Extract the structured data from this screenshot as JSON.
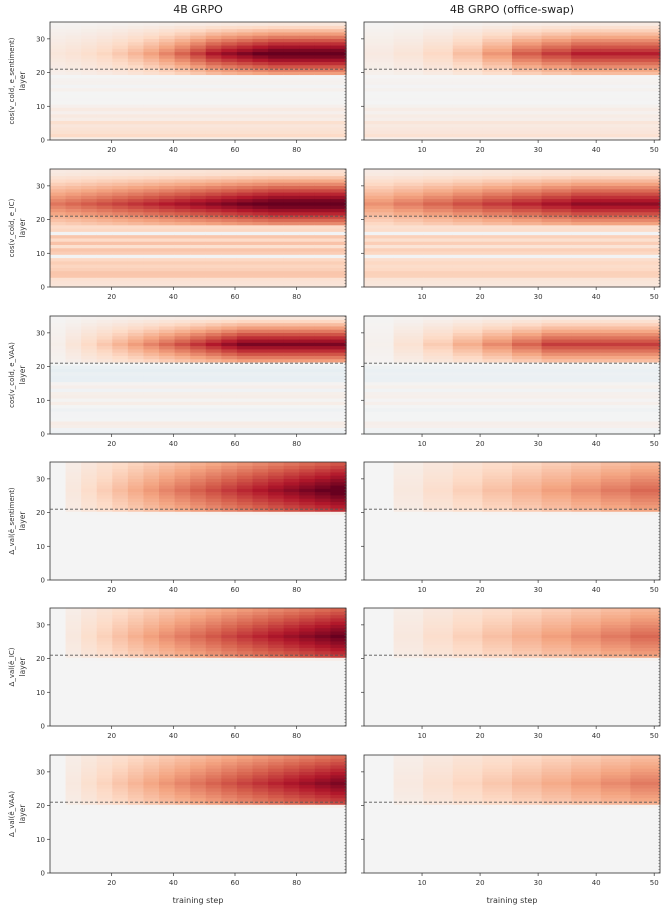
{
  "figure": {
    "columns": [
      {
        "title": "4B GRPO"
      },
      {
        "title": "4B GRPO (office-swap)"
      }
    ],
    "xlabel": "training step",
    "row_ylabels": [
      {
        "metric": "cos(v_cold, e_sentiment)",
        "axis": "layer"
      },
      {
        "metric": "cos(v_cold, e_IC)",
        "axis": "layer"
      },
      {
        "metric": "cos(v_cold, e_VAA)",
        "axis": "layer"
      },
      {
        "metric": "Δ_val(ê_sentiment)",
        "axis": "layer"
      },
      {
        "metric": "Δ_val(ê_IC)",
        "axis": "layer"
      },
      {
        "metric": "Δ_val(ê_VAA)",
        "axis": "layer"
      }
    ]
  },
  "colors": {
    "cmap": "RdBu_r",
    "neutral": "#f4f4f4",
    "max_red": "#67001f",
    "max_blue": "#2166ac",
    "dashed_line": "#555555"
  },
  "chart_data": [
    {
      "type": "heatmap",
      "row": 1,
      "column": "4B GRPO",
      "x_range": [
        5,
        95
      ],
      "x_ticks": [
        20,
        40,
        60,
        80
      ],
      "y_ticks": [
        0,
        10,
        20,
        30
      ],
      "y_range": [
        0,
        35
      ],
      "dashed_layer": 21,
      "intensity": 1.0,
      "profile": "cos-sentiment"
    },
    {
      "type": "heatmap",
      "row": 1,
      "column": "4B GRPO (office-swap)",
      "x_range": [
        5,
        50
      ],
      "x_ticks": [
        10,
        20,
        30,
        40,
        50
      ],
      "y_ticks": [
        0,
        10,
        20,
        30
      ],
      "y_range": [
        0,
        35
      ],
      "dashed_layer": 21,
      "intensity": 0.75,
      "profile": "cos-sentiment"
    },
    {
      "type": "heatmap",
      "row": 2,
      "column": "4B GRPO",
      "x_range": [
        5,
        95
      ],
      "x_ticks": [
        20,
        40,
        60,
        80
      ],
      "y_ticks": [
        0,
        10,
        20,
        30
      ],
      "y_range": [
        0,
        35
      ],
      "dashed_layer": 21,
      "intensity": 1.0,
      "profile": "cos-ic"
    },
    {
      "type": "heatmap",
      "row": 2,
      "column": "4B GRPO (office-swap)",
      "x_range": [
        5,
        50
      ],
      "x_ticks": [
        10,
        20,
        30,
        40,
        50
      ],
      "y_ticks": [
        0,
        10,
        20,
        30
      ],
      "y_range": [
        0,
        35
      ],
      "dashed_layer": 21,
      "intensity": 0.85,
      "profile": "cos-ic"
    },
    {
      "type": "heatmap",
      "row": 3,
      "column": "4B GRPO",
      "x_range": [
        5,
        95
      ],
      "x_ticks": [
        20,
        40,
        60,
        80
      ],
      "y_ticks": [
        0,
        10,
        20,
        30
      ],
      "y_range": [
        0,
        35
      ],
      "dashed_layer": 21,
      "intensity": 0.95,
      "profile": "cos-vaa"
    },
    {
      "type": "heatmap",
      "row": 3,
      "column": "4B GRPO (office-swap)",
      "x_range": [
        5,
        50
      ],
      "x_ticks": [
        10,
        20,
        30,
        40,
        50
      ],
      "y_ticks": [
        0,
        10,
        20,
        30
      ],
      "y_range": [
        0,
        35
      ],
      "dashed_layer": 21,
      "intensity": 0.7,
      "profile": "cos-vaa"
    },
    {
      "type": "heatmap",
      "row": 4,
      "column": "4B GRPO",
      "x_range": [
        5,
        95
      ],
      "x_ticks": [
        20,
        40,
        60,
        80
      ],
      "y_ticks": [
        0,
        10,
        20,
        30
      ],
      "y_range": [
        0,
        35
      ],
      "dashed_layer": 21,
      "intensity": 1.0,
      "profile": "delta"
    },
    {
      "type": "heatmap",
      "row": 4,
      "column": "4B GRPO (office-swap)",
      "x_range": [
        5,
        50
      ],
      "x_ticks": [
        10,
        20,
        30,
        40,
        50
      ],
      "y_ticks": [
        0,
        10,
        20,
        30
      ],
      "y_range": [
        0,
        35
      ],
      "dashed_layer": 21,
      "intensity": 0.55,
      "profile": "delta"
    },
    {
      "type": "heatmap",
      "row": 5,
      "column": "4B GRPO",
      "x_range": [
        5,
        95
      ],
      "x_ticks": [
        20,
        40,
        60,
        80
      ],
      "y_ticks": [
        0,
        10,
        20,
        30
      ],
      "y_range": [
        0,
        35
      ],
      "dashed_layer": 21,
      "intensity": 0.95,
      "profile": "delta"
    },
    {
      "type": "heatmap",
      "row": 5,
      "column": "4B GRPO (office-swap)",
      "x_range": [
        5,
        50
      ],
      "x_ticks": [
        10,
        20,
        30,
        40,
        50
      ],
      "y_ticks": [
        0,
        10,
        20,
        30
      ],
      "y_range": [
        0,
        35
      ],
      "dashed_layer": 21,
      "intensity": 0.55,
      "profile": "delta"
    },
    {
      "type": "heatmap",
      "row": 6,
      "column": "4B GRPO",
      "x_range": [
        5,
        95
      ],
      "x_ticks": [
        20,
        40,
        60,
        80
      ],
      "y_ticks": [
        0,
        10,
        20,
        30
      ],
      "y_range": [
        0,
        35
      ],
      "dashed_layer": 21,
      "intensity": 0.9,
      "profile": "delta"
    },
    {
      "type": "heatmap",
      "row": 6,
      "column": "4B GRPO (office-swap)",
      "x_range": [
        5,
        50
      ],
      "x_ticks": [
        10,
        20,
        30,
        40,
        50
      ],
      "y_ticks": [
        0,
        10,
        20,
        30
      ],
      "y_range": [
        0,
        35
      ],
      "dashed_layer": 21,
      "intensity": 0.5,
      "profile": "delta"
    }
  ]
}
